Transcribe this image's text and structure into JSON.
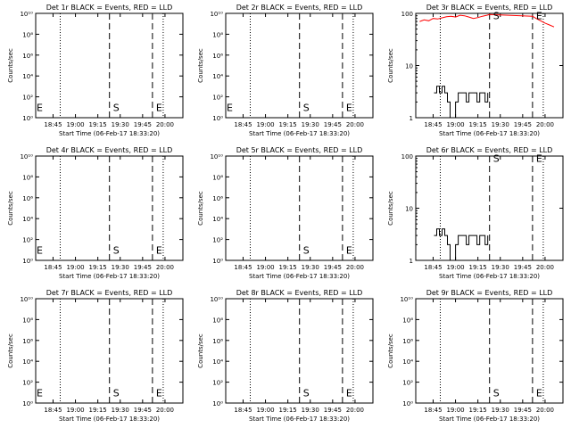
{
  "figure": {
    "xlabel": "Start Time (06-Feb-17 18:33:20)",
    "ylabel": "Counts/sec",
    "xticks": [
      {
        "label": "18:45",
        "t": 18.75
      },
      {
        "label": "19:00",
        "t": 19.0
      },
      {
        "label": "19:15",
        "t": 19.25
      },
      {
        "label": "19:30",
        "t": 19.5
      },
      {
        "label": "19:45",
        "t": 19.75
      },
      {
        "label": "20:00",
        "t": 20.0
      }
    ],
    "markers": {
      "S": "S",
      "E": "E"
    },
    "colors": {
      "events": "#000000",
      "lld": "#ff0000",
      "axes": "#000000",
      "background": "#ffffff"
    }
  },
  "chart_data": [
    {
      "type": "line",
      "title": "Det 1r BLACK = Events, RED = LLD",
      "xlim": [
        18.556,
        20.2
      ],
      "yscale": "log",
      "ylim": [
        1,
        10000000000
      ],
      "ytick_labels": [
        "10⁰",
        "10²",
        "10⁴",
        "10⁶",
        "10⁸",
        "10¹⁰"
      ],
      "dotted_lines_x": [
        18.83,
        19.98
      ],
      "dashed_lines_x": [
        19.38,
        19.86
      ],
      "marker_labels": [
        {
          "text": "S",
          "x": 19.38,
          "y": 10
        },
        {
          "text": "E",
          "x": 19.86,
          "y": 10
        },
        {
          "text": "E",
          "x": 18.57,
          "y": 10
        }
      ],
      "series": []
    },
    {
      "type": "line",
      "title": "Det 2r BLACK = Events, RED = LLD",
      "xlim": [
        18.556,
        20.2
      ],
      "yscale": "log",
      "ylim": [
        1,
        10000000000
      ],
      "ytick_labels": [
        "10⁰",
        "10²",
        "10⁴",
        "10⁶",
        "10⁸",
        "10¹⁰"
      ],
      "dotted_lines_x": [
        18.83,
        19.98
      ],
      "dashed_lines_x": [
        19.38,
        19.86
      ],
      "marker_labels": [
        {
          "text": "S",
          "x": 19.38,
          "y": 10
        },
        {
          "text": "E",
          "x": 19.86,
          "y": 10
        },
        {
          "text": "E",
          "x": 18.57,
          "y": 10
        }
      ],
      "series": []
    },
    {
      "type": "line",
      "title": "Det 3r BLACK = Events, RED = LLD",
      "xlim": [
        18.556,
        20.2
      ],
      "yscale": "log",
      "ylim": [
        1,
        100
      ],
      "ytick_labels": [
        "1",
        "10",
        "100"
      ],
      "dotted_lines_x": [
        18.83,
        19.98
      ],
      "dashed_lines_x": [
        19.38,
        19.86
      ],
      "marker_labels": [
        {
          "text": "S",
          "x": 19.38,
          "y": 90
        },
        {
          "text": "E",
          "x": 19.86,
          "y": 90
        }
      ],
      "series": [
        {
          "role": "lld",
          "color": "#ff0000",
          "x": [
            18.6,
            18.65,
            18.7,
            18.75,
            18.8,
            18.85,
            18.9,
            18.95,
            19.0,
            19.05,
            19.1,
            19.15,
            19.2,
            19.25,
            19.3,
            19.35,
            19.38,
            19.86,
            19.9,
            19.95,
            20.0,
            20.05,
            20.1
          ],
          "y": [
            70,
            75,
            72,
            80,
            78,
            82,
            86,
            88,
            85,
            92,
            90,
            85,
            80,
            83,
            88,
            92,
            95,
            88,
            80,
            72,
            65,
            60,
            55
          ]
        },
        {
          "role": "events",
          "color": "#000000",
          "x": [
            18.76,
            18.79,
            18.82,
            18.85,
            18.88,
            18.91,
            18.94,
            18.97,
            19.0,
            19.03,
            19.06,
            19.09,
            19.12,
            19.15,
            19.18,
            19.21,
            19.24,
            19.27,
            19.3,
            19.33,
            19.36
          ],
          "y": [
            3,
            4,
            3,
            4,
            3,
            2,
            1,
            1,
            2,
            3,
            3,
            3,
            2,
            3,
            3,
            3,
            2,
            3,
            3,
            2,
            3
          ]
        }
      ]
    },
    {
      "type": "line",
      "title": "Det 4r BLACK = Events, RED = LLD",
      "xlim": [
        18.556,
        20.2
      ],
      "yscale": "log",
      "ylim": [
        1,
        10000000000
      ],
      "ytick_labels": [
        "10⁰",
        "10²",
        "10⁴",
        "10⁶",
        "10⁸",
        "10¹⁰"
      ],
      "dotted_lines_x": [
        18.83,
        19.98
      ],
      "dashed_lines_x": [
        19.38,
        19.86
      ],
      "marker_labels": [
        {
          "text": "S",
          "x": 19.38,
          "y": 10
        },
        {
          "text": "E",
          "x": 19.86,
          "y": 10
        },
        {
          "text": "E",
          "x": 18.57,
          "y": 10
        }
      ],
      "series": []
    },
    {
      "type": "line",
      "title": "Det 5r BLACK = Events, RED = LLD",
      "xlim": [
        18.556,
        20.2
      ],
      "yscale": "log",
      "ylim": [
        1,
        10000000000
      ],
      "ytick_labels": [
        "10⁰",
        "10²",
        "10⁴",
        "10⁶",
        "10⁸",
        "10¹⁰"
      ],
      "dotted_lines_x": [
        18.83,
        19.98
      ],
      "dashed_lines_x": [
        19.38,
        19.86
      ],
      "marker_labels": [
        {
          "text": "S",
          "x": 19.38,
          "y": 10
        },
        {
          "text": "E",
          "x": 19.86,
          "y": 10
        }
      ],
      "series": []
    },
    {
      "type": "line",
      "title": "Det 6r BLACK = Events, RED = LLD",
      "xlim": [
        18.556,
        20.2
      ],
      "yscale": "log",
      "ylim": [
        1,
        100
      ],
      "ytick_labels": [
        "1",
        "10",
        "100"
      ],
      "dotted_lines_x": [
        18.83,
        19.98
      ],
      "dashed_lines_x": [
        19.38,
        19.86
      ],
      "marker_labels": [
        {
          "text": "S",
          "x": 19.38,
          "y": 90
        },
        {
          "text": "E",
          "x": 19.86,
          "y": 90
        }
      ],
      "series": [
        {
          "role": "events",
          "color": "#000000",
          "x": [
            18.76,
            18.79,
            18.82,
            18.85,
            18.88,
            18.91,
            18.94,
            18.97,
            19.0,
            19.03,
            19.06,
            19.09,
            19.12,
            19.15,
            19.18,
            19.21,
            19.24,
            19.27,
            19.3,
            19.33,
            19.36
          ],
          "y": [
            3,
            4,
            3,
            4,
            3,
            2,
            1,
            1,
            2,
            3,
            3,
            3,
            2,
            3,
            3,
            3,
            2,
            3,
            3,
            2,
            3
          ]
        }
      ]
    },
    {
      "type": "line",
      "title": "Det 7r BLACK = Events, RED = LLD",
      "xlim": [
        18.556,
        20.2
      ],
      "yscale": "log",
      "ylim": [
        1,
        10000000000
      ],
      "ytick_labels": [
        "10⁰",
        "10²",
        "10⁴",
        "10⁶",
        "10⁸",
        "10¹⁰"
      ],
      "dotted_lines_x": [
        18.83,
        19.98
      ],
      "dashed_lines_x": [
        19.38,
        19.86
      ],
      "marker_labels": [
        {
          "text": "S",
          "x": 19.38,
          "y": 10
        },
        {
          "text": "E",
          "x": 19.86,
          "y": 10
        },
        {
          "text": "E",
          "x": 18.57,
          "y": 10
        }
      ],
      "series": []
    },
    {
      "type": "line",
      "title": "Det 8r BLACK = Events, RED = LLD",
      "xlim": [
        18.556,
        20.2
      ],
      "yscale": "log",
      "ylim": [
        1,
        10000000000
      ],
      "ytick_labels": [
        "10⁰",
        "10²",
        "10⁴",
        "10⁶",
        "10⁸",
        "10¹⁰"
      ],
      "dotted_lines_x": [
        18.83,
        19.98
      ],
      "dashed_lines_x": [
        19.38,
        19.86
      ],
      "marker_labels": [
        {
          "text": "S",
          "x": 19.38,
          "y": 10
        },
        {
          "text": "E",
          "x": 19.86,
          "y": 10
        }
      ],
      "series": []
    },
    {
      "type": "line",
      "title": "Det 9r BLACK = Events, RED = LLD",
      "xlim": [
        18.556,
        20.2
      ],
      "yscale": "log",
      "ylim": [
        1,
        10000000000
      ],
      "ytick_labels": [
        "10⁰",
        "10²",
        "10⁴",
        "10⁶",
        "10⁸",
        "10¹⁰"
      ],
      "dotted_lines_x": [
        18.83,
        19.98
      ],
      "dashed_lines_x": [
        19.38,
        19.86
      ],
      "marker_labels": [
        {
          "text": "S",
          "x": 19.38,
          "y": 10
        },
        {
          "text": "E",
          "x": 19.86,
          "y": 10
        }
      ],
      "series": []
    }
  ]
}
